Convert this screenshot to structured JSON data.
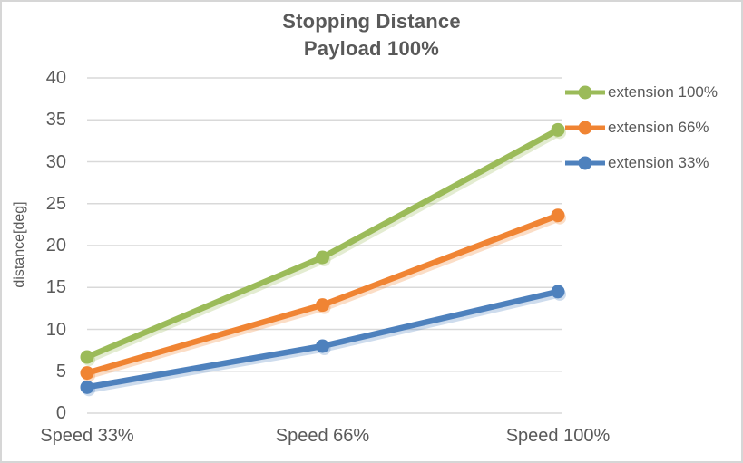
{
  "chart_data": {
    "type": "line",
    "title": "Stopping Distance",
    "subtitle": "Payload 100%",
    "categories": [
      "Speed 33%",
      "Speed 66%",
      "Speed 100%"
    ],
    "series": [
      {
        "name": "extension 100%",
        "color": "#9BBB59",
        "values": [
          6.7,
          18.6,
          33.8
        ]
      },
      {
        "name": "extension 66%",
        "color": "#F08433",
        "values": [
          4.8,
          12.9,
          23.6
        ]
      },
      {
        "name": "extension 33%",
        "color": "#4E81BD",
        "values": [
          3.1,
          8.0,
          14.5
        ]
      }
    ],
    "xlabel": "",
    "ylabel": "distance[deg]",
    "ylim": [
      0,
      40
    ],
    "ytick_step": 5,
    "yticks": [
      0,
      5,
      10,
      15,
      20,
      25,
      30,
      35,
      40
    ],
    "grid": true,
    "legend_position": "right",
    "marker": "circle"
  },
  "colors": {
    "text": "#595959",
    "gridline": "#D9D9D9",
    "border": "#D6D6D6",
    "background": "#FFFFFF"
  }
}
